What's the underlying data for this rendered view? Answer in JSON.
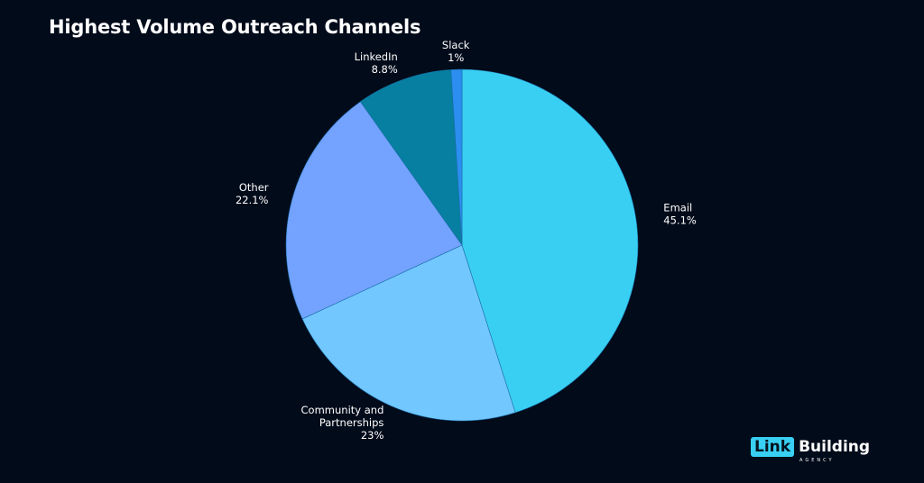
{
  "chart_data": {
    "type": "pie",
    "title": "Highest Volume Outreach Channels",
    "slices": [
      {
        "name": "Email",
        "value": 45.1,
        "label": "45.1%",
        "color": "#38cff2"
      },
      {
        "name": "Community and Partnerships",
        "value": 23,
        "label": "23%",
        "color": "#72c7ff"
      },
      {
        "name": "Other",
        "value": 22.1,
        "label": "22.1%",
        "color": "#73a2ff"
      },
      {
        "name": "LinkedIn",
        "value": 8.8,
        "label": "8.8%",
        "color": "#067fa0"
      },
      {
        "name": "Slack",
        "value": 1,
        "label": "1%",
        "color": "#2b8ef0"
      }
    ],
    "start": "12 o'clock",
    "direction": "clockwise",
    "legend": "none"
  },
  "branding": {
    "logo_badge": "Link",
    "logo_word": "Building",
    "logo_sub": "AGENCY"
  }
}
